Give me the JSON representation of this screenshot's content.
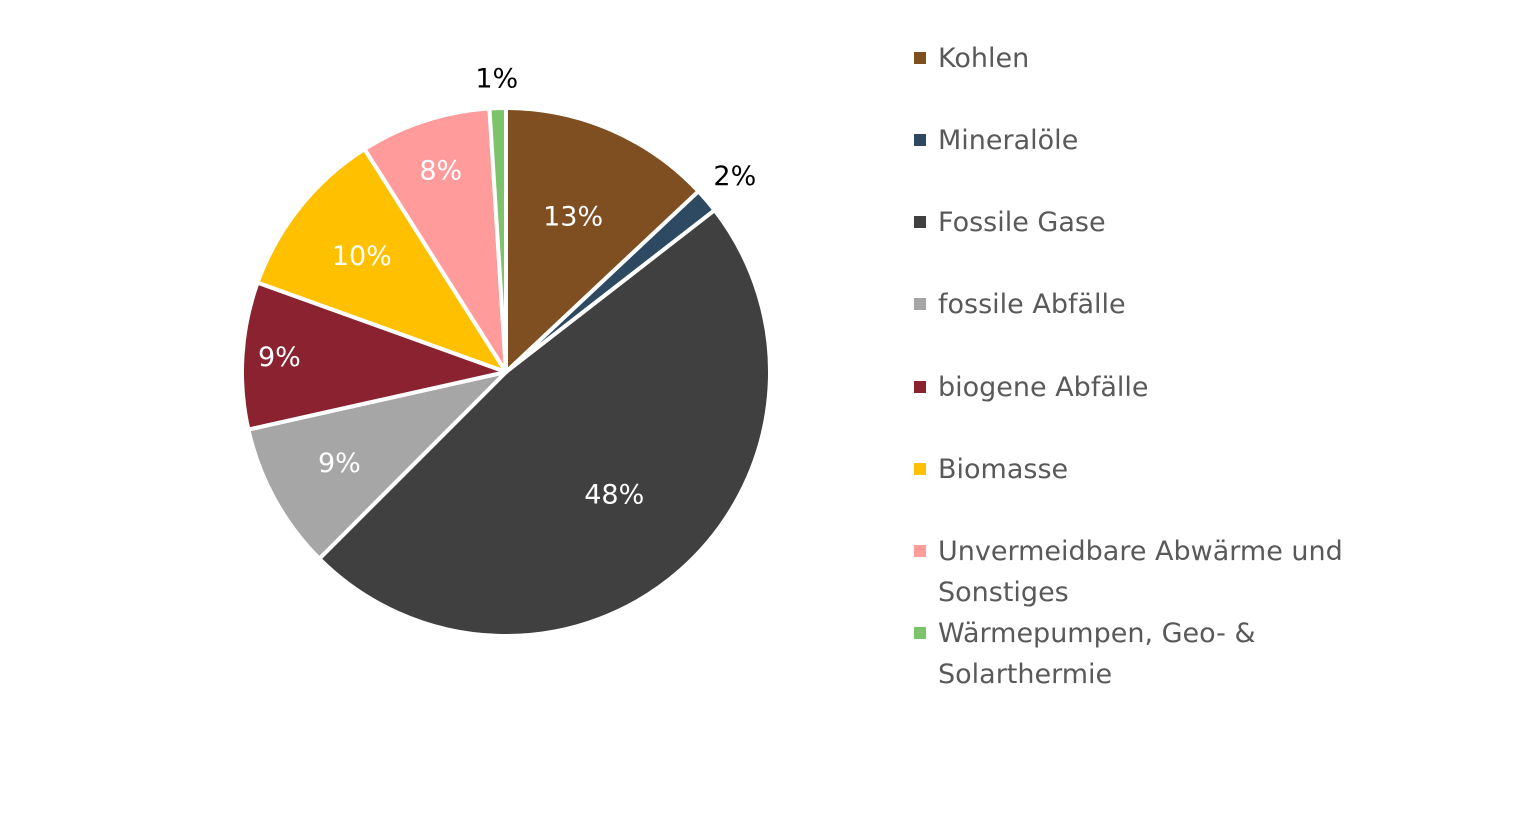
{
  "chart_data": {
    "type": "pie",
    "title": "",
    "slices": [
      {
        "name": "Kohlen",
        "value": 13,
        "label": "13%",
        "color": "#7F4F21"
      },
      {
        "name": "Mineralöle",
        "value": 1.5,
        "label": "2%",
        "color": "#2E4A62"
      },
      {
        "name": "Fossile Gase",
        "value": 48,
        "label": "48%",
        "color": "#404040"
      },
      {
        "name": "fossile Abfälle",
        "value": 9,
        "label": "9%",
        "color": "#A6A6A6"
      },
      {
        "name": "biogene Abfälle",
        "value": 9,
        "label": "9%",
        "color": "#8B2230"
      },
      {
        "name": "Biomasse",
        "value": 10.5,
        "label": "10%",
        "color": "#FFC000"
      },
      {
        "name": "Unvermeidbare Abwärme und Sonstiges",
        "value": 8,
        "label": "8%",
        "color": "#FF9B9B"
      },
      {
        "name": "Wärmepumpen, Geo- & Solarthermie",
        "value": 1,
        "label": "1%",
        "color": "#7CC36B"
      }
    ],
    "legend_position": "right",
    "start_angle_deg": 0,
    "direction": "clockwise"
  }
}
